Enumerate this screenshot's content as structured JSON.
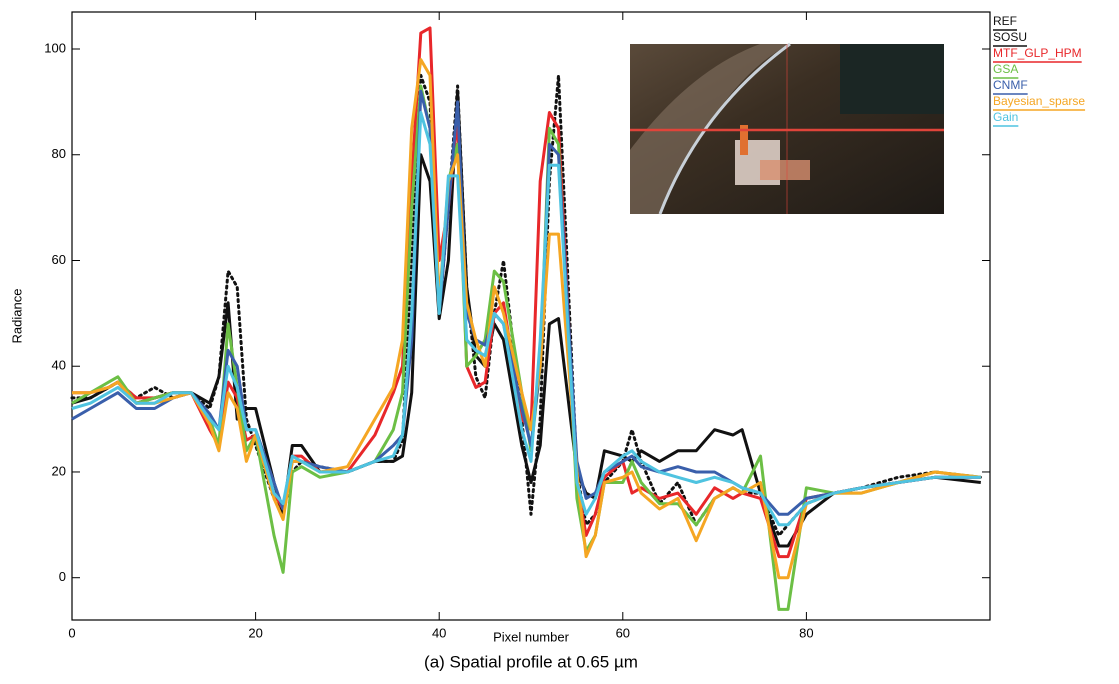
{
  "chart_data": {
    "type": "line",
    "xlabel": "Pixel number",
    "ylabel": "Radiance",
    "caption": "(a) Spatial profile at 0.65 µm",
    "x": [
      0,
      2,
      4,
      5,
      7,
      9,
      11,
      13,
      15,
      16,
      17,
      18,
      19,
      20,
      22,
      23,
      24,
      25,
      27,
      30,
      33,
      35,
      36,
      37,
      38,
      39,
      40,
      41,
      42,
      43,
      44,
      45,
      46,
      47,
      49,
      50,
      51,
      52,
      53,
      55,
      56,
      57,
      58,
      60,
      61,
      62,
      64,
      66,
      68,
      70,
      72,
      73,
      75,
      77,
      78,
      80,
      83,
      86,
      90,
      94,
      99
    ],
    "xlim": [
      0,
      100
    ],
    "ylim": [
      -8,
      107
    ],
    "xticks": [
      0,
      20,
      40,
      60,
      80
    ],
    "yticks": [
      0,
      20,
      40,
      60,
      80,
      100
    ],
    "series": [
      {
        "name": "REF",
        "color": "#111111",
        "style": "dotted",
        "values": [
          34,
          34,
          36,
          37,
          34,
          36,
          34,
          35,
          32,
          38,
          58,
          55,
          30,
          25,
          15,
          12,
          20,
          22,
          21,
          20,
          22,
          22,
          26,
          60,
          95,
          90,
          50,
          70,
          93,
          55,
          38,
          34,
          50,
          60,
          30,
          12,
          30,
          75,
          95,
          20,
          10,
          12,
          18,
          22,
          28,
          22,
          14,
          18,
          10,
          15,
          17,
          16,
          16,
          8,
          10,
          14,
          16,
          17,
          19,
          20,
          19
        ]
      },
      {
        "name": "SOSU",
        "color": "#111111",
        "style": "solid",
        "values": [
          33,
          34,
          36,
          37,
          33,
          34,
          35,
          35,
          33,
          38,
          52,
          30,
          32,
          32,
          18,
          12,
          25,
          25,
          20,
          20,
          22,
          22,
          23,
          35,
          80,
          75,
          49,
          60,
          92,
          55,
          42,
          40,
          48,
          45,
          25,
          18,
          25,
          48,
          49,
          20,
          16,
          15,
          24,
          23,
          22,
          24,
          22,
          24,
          24,
          28,
          27,
          28,
          16,
          6,
          6,
          12,
          16,
          17,
          18,
          19,
          18
        ]
      },
      {
        "name": "MTF_GLP_HPM",
        "color": "#e8272a",
        "style": "solid",
        "values": [
          35,
          35,
          36,
          37,
          34,
          34,
          35,
          35,
          28,
          25,
          37,
          34,
          26,
          27,
          16,
          13,
          23,
          23,
          20,
          20,
          27,
          35,
          40,
          75,
          103,
          104,
          60,
          70,
          87,
          40,
          36,
          37,
          50,
          52,
          30,
          28,
          75,
          88,
          85,
          18,
          8,
          12,
          19,
          22,
          16,
          17,
          15,
          16,
          12,
          17,
          15,
          16,
          15,
          4,
          4,
          15,
          16,
          17,
          18,
          19,
          19
        ]
      },
      {
        "name": "GSA",
        "color": "#6cbf45",
        "style": "solid",
        "values": [
          33,
          35,
          37,
          38,
          33,
          34,
          35,
          35,
          30,
          25,
          48,
          36,
          24,
          27,
          8,
          1,
          20,
          21,
          19,
          20,
          22,
          28,
          35,
          70,
          93,
          85,
          50,
          75,
          82,
          40,
          42,
          45,
          58,
          56,
          35,
          24,
          40,
          85,
          82,
          15,
          5,
          8,
          18,
          18,
          22,
          18,
          14,
          14,
          10,
          15,
          17,
          16,
          23,
          -6,
          -6,
          17,
          16,
          16,
          18,
          20,
          19
        ]
      },
      {
        "name": "CNMF",
        "color": "#3a5fab",
        "style": "solid",
        "values": [
          30,
          32,
          34,
          35,
          32,
          32,
          34,
          35,
          31,
          28,
          43,
          40,
          28,
          28,
          18,
          13,
          22,
          22,
          21,
          20,
          22,
          25,
          27,
          45,
          92,
          85,
          50,
          70,
          90,
          50,
          45,
          44,
          50,
          48,
          32,
          25,
          40,
          82,
          80,
          22,
          15,
          16,
          20,
          22,
          23,
          21,
          20,
          21,
          20,
          20,
          18,
          17,
          16,
          12,
          12,
          15,
          16,
          17,
          18,
          19,
          19
        ]
      },
      {
        "name": "Bayesian_sparse",
        "color": "#f5a623",
        "style": "solid",
        "values": [
          35,
          35,
          36,
          37,
          33,
          33,
          34,
          35,
          29,
          24,
          35,
          32,
          22,
          27,
          15,
          11,
          22,
          22,
          20,
          21,
          30,
          36,
          45,
          85,
          98,
          95,
          52,
          75,
          80,
          52,
          45,
          40,
          55,
          50,
          35,
          28,
          40,
          65,
          65,
          20,
          4,
          8,
          18,
          19,
          20,
          16,
          13,
          15,
          7,
          15,
          17,
          16,
          18,
          0,
          0,
          14,
          16,
          16,
          18,
          20,
          19
        ]
      },
      {
        "name": "Gain",
        "color": "#4fc3e0",
        "style": "solid",
        "values": [
          32,
          33,
          35,
          36,
          33,
          33,
          35,
          35,
          30,
          28,
          40,
          36,
          28,
          28,
          16,
          14,
          23,
          22,
          20,
          20,
          22,
          23,
          27,
          50,
          88,
          82,
          50,
          76,
          76,
          45,
          43,
          42,
          50,
          48,
          28,
          22,
          45,
          78,
          78,
          18,
          12,
          15,
          20,
          23,
          24,
          22,
          20,
          19,
          18,
          19,
          18,
          17,
          16,
          10,
          10,
          14,
          16,
          17,
          18,
          19,
          19
        ]
      }
    ]
  }
}
